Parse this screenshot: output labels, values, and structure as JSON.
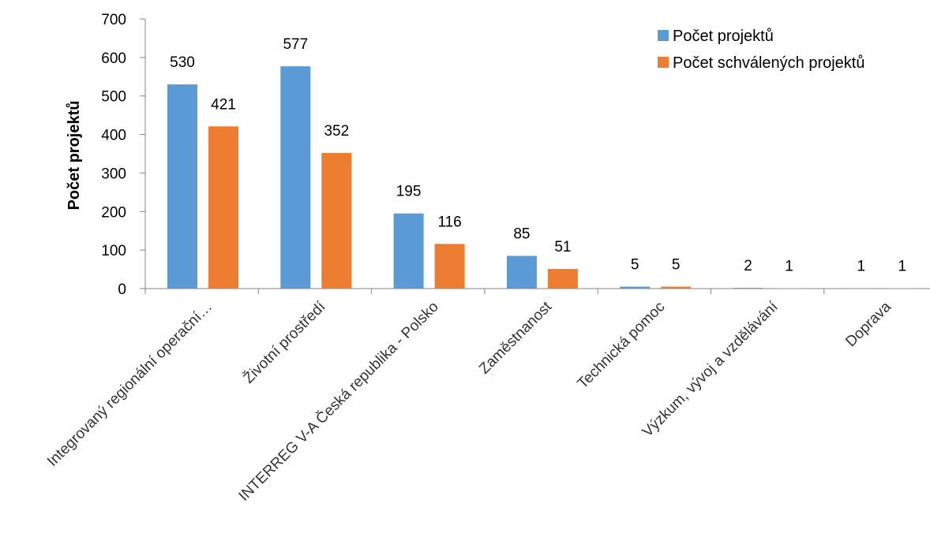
{
  "chart_data": {
    "type": "bar",
    "categories": [
      "Integrovaný regionální operační…",
      "Životní prostředí",
      "INTERREG V-A Česká republika - Polsko",
      "Zaměstnanost",
      "Technická pomoc",
      "Výzkum, vývoj a vzdělávání",
      "Doprava"
    ],
    "series": [
      {
        "name": "Počet projektů",
        "color": "#5B9BD5",
        "values": [
          530,
          577,
          195,
          85,
          5,
          2,
          1
        ]
      },
      {
        "name": "Počet schválených projektů",
        "color": "#ED7D31",
        "values": [
          421,
          352,
          116,
          51,
          5,
          1,
          1
        ]
      }
    ],
    "ylabel": "Počet projektů",
    "ylim": [
      0,
      700
    ],
    "yticks": [
      0,
      100,
      200,
      300,
      400,
      500,
      600,
      700
    ],
    "grid": false,
    "legend_position": "top-right",
    "data_labels": true
  }
}
